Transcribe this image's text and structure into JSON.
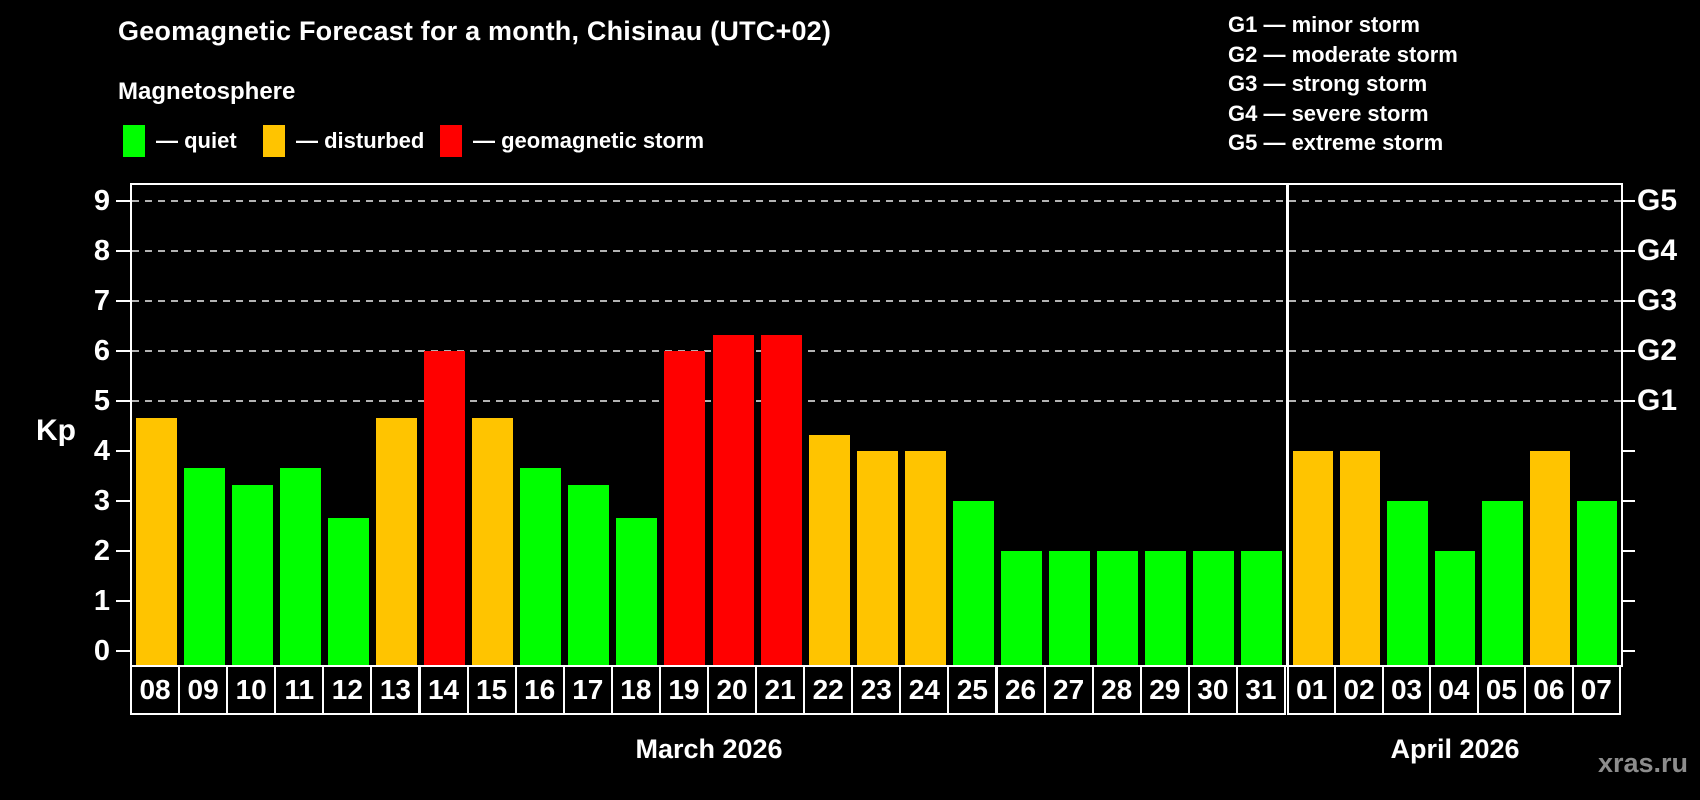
{
  "header": {
    "title": "Geomagnetic Forecast for a month, Chisinau (UTC+02)",
    "subtitle": "Magnetosphere"
  },
  "legend": {
    "items": [
      {
        "label": "— quiet",
        "state": "quiet",
        "color": "#00ff00"
      },
      {
        "label": "— disturbed",
        "state": "disturbed",
        "color": "#ffc400"
      },
      {
        "label": "— geomagnetic storm",
        "state": "storm",
        "color": "#ff0000"
      }
    ]
  },
  "g_legend": {
    "items": [
      "G1 — minor storm",
      "G2 — moderate storm",
      "G3 — strong storm",
      "G4 — severe storm",
      "G5 — extreme storm"
    ]
  },
  "axes": {
    "y_label": "Kp",
    "y_ticks": [
      "0",
      "1",
      "2",
      "3",
      "4",
      "5",
      "6",
      "7",
      "8",
      "9"
    ],
    "g_ticks": [
      {
        "label": "G1",
        "kp": 5
      },
      {
        "label": "G2",
        "kp": 6
      },
      {
        "label": "G3",
        "kp": 7
      },
      {
        "label": "G4",
        "kp": 8
      },
      {
        "label": "G5",
        "kp": 9
      }
    ]
  },
  "footer": {
    "watermark": "xras.ru"
  },
  "chart_data": {
    "type": "bar",
    "title": "Geomagnetic Forecast for a month, Chisinau (UTC+02)",
    "xlabel": "",
    "ylabel": "Kp",
    "ylim": [
      0,
      9
    ],
    "grid": "dashed horizontal at Kp 5-9",
    "state_colors": {
      "quiet": "#00ff00",
      "disturbed": "#ffc400",
      "storm": "#ff0000"
    },
    "groups": [
      {
        "month_label": "March 2026",
        "days": [
          {
            "day": "08",
            "kp": 4.67,
            "state": "disturbed"
          },
          {
            "day": "09",
            "kp": 3.67,
            "state": "quiet"
          },
          {
            "day": "10",
            "kp": 3.33,
            "state": "quiet"
          },
          {
            "day": "11",
            "kp": 3.67,
            "state": "quiet"
          },
          {
            "day": "12",
            "kp": 2.67,
            "state": "quiet"
          },
          {
            "day": "13",
            "kp": 4.67,
            "state": "disturbed"
          },
          {
            "day": "14",
            "kp": 6.0,
            "state": "storm"
          },
          {
            "day": "15",
            "kp": 4.67,
            "state": "disturbed"
          },
          {
            "day": "16",
            "kp": 3.67,
            "state": "quiet"
          },
          {
            "day": "17",
            "kp": 3.33,
            "state": "quiet"
          },
          {
            "day": "18",
            "kp": 2.67,
            "state": "quiet"
          },
          {
            "day": "19",
            "kp": 6.0,
            "state": "storm"
          },
          {
            "day": "20",
            "kp": 6.33,
            "state": "storm"
          },
          {
            "day": "21",
            "kp": 6.33,
            "state": "storm"
          },
          {
            "day": "22",
            "kp": 4.33,
            "state": "disturbed"
          },
          {
            "day": "23",
            "kp": 4.0,
            "state": "disturbed"
          },
          {
            "day": "24",
            "kp": 4.0,
            "state": "disturbed"
          },
          {
            "day": "25",
            "kp": 3.0,
            "state": "quiet"
          },
          {
            "day": "26",
            "kp": 2.0,
            "state": "quiet"
          },
          {
            "day": "27",
            "kp": 2.0,
            "state": "quiet"
          },
          {
            "day": "28",
            "kp": 2.0,
            "state": "quiet"
          },
          {
            "day": "29",
            "kp": 2.0,
            "state": "quiet"
          },
          {
            "day": "30",
            "kp": 2.0,
            "state": "quiet"
          },
          {
            "day": "31",
            "kp": 2.0,
            "state": "quiet"
          }
        ]
      },
      {
        "month_label": "April 2026",
        "days": [
          {
            "day": "01",
            "kp": 4.0,
            "state": "disturbed"
          },
          {
            "day": "02",
            "kp": 4.0,
            "state": "disturbed"
          },
          {
            "day": "03",
            "kp": 3.0,
            "state": "quiet"
          },
          {
            "day": "04",
            "kp": 2.0,
            "state": "quiet"
          },
          {
            "day": "05",
            "kp": 3.0,
            "state": "quiet"
          },
          {
            "day": "06",
            "kp": 4.0,
            "state": "disturbed"
          },
          {
            "day": "07",
            "kp": 3.0,
            "state": "quiet"
          }
        ]
      }
    ]
  }
}
